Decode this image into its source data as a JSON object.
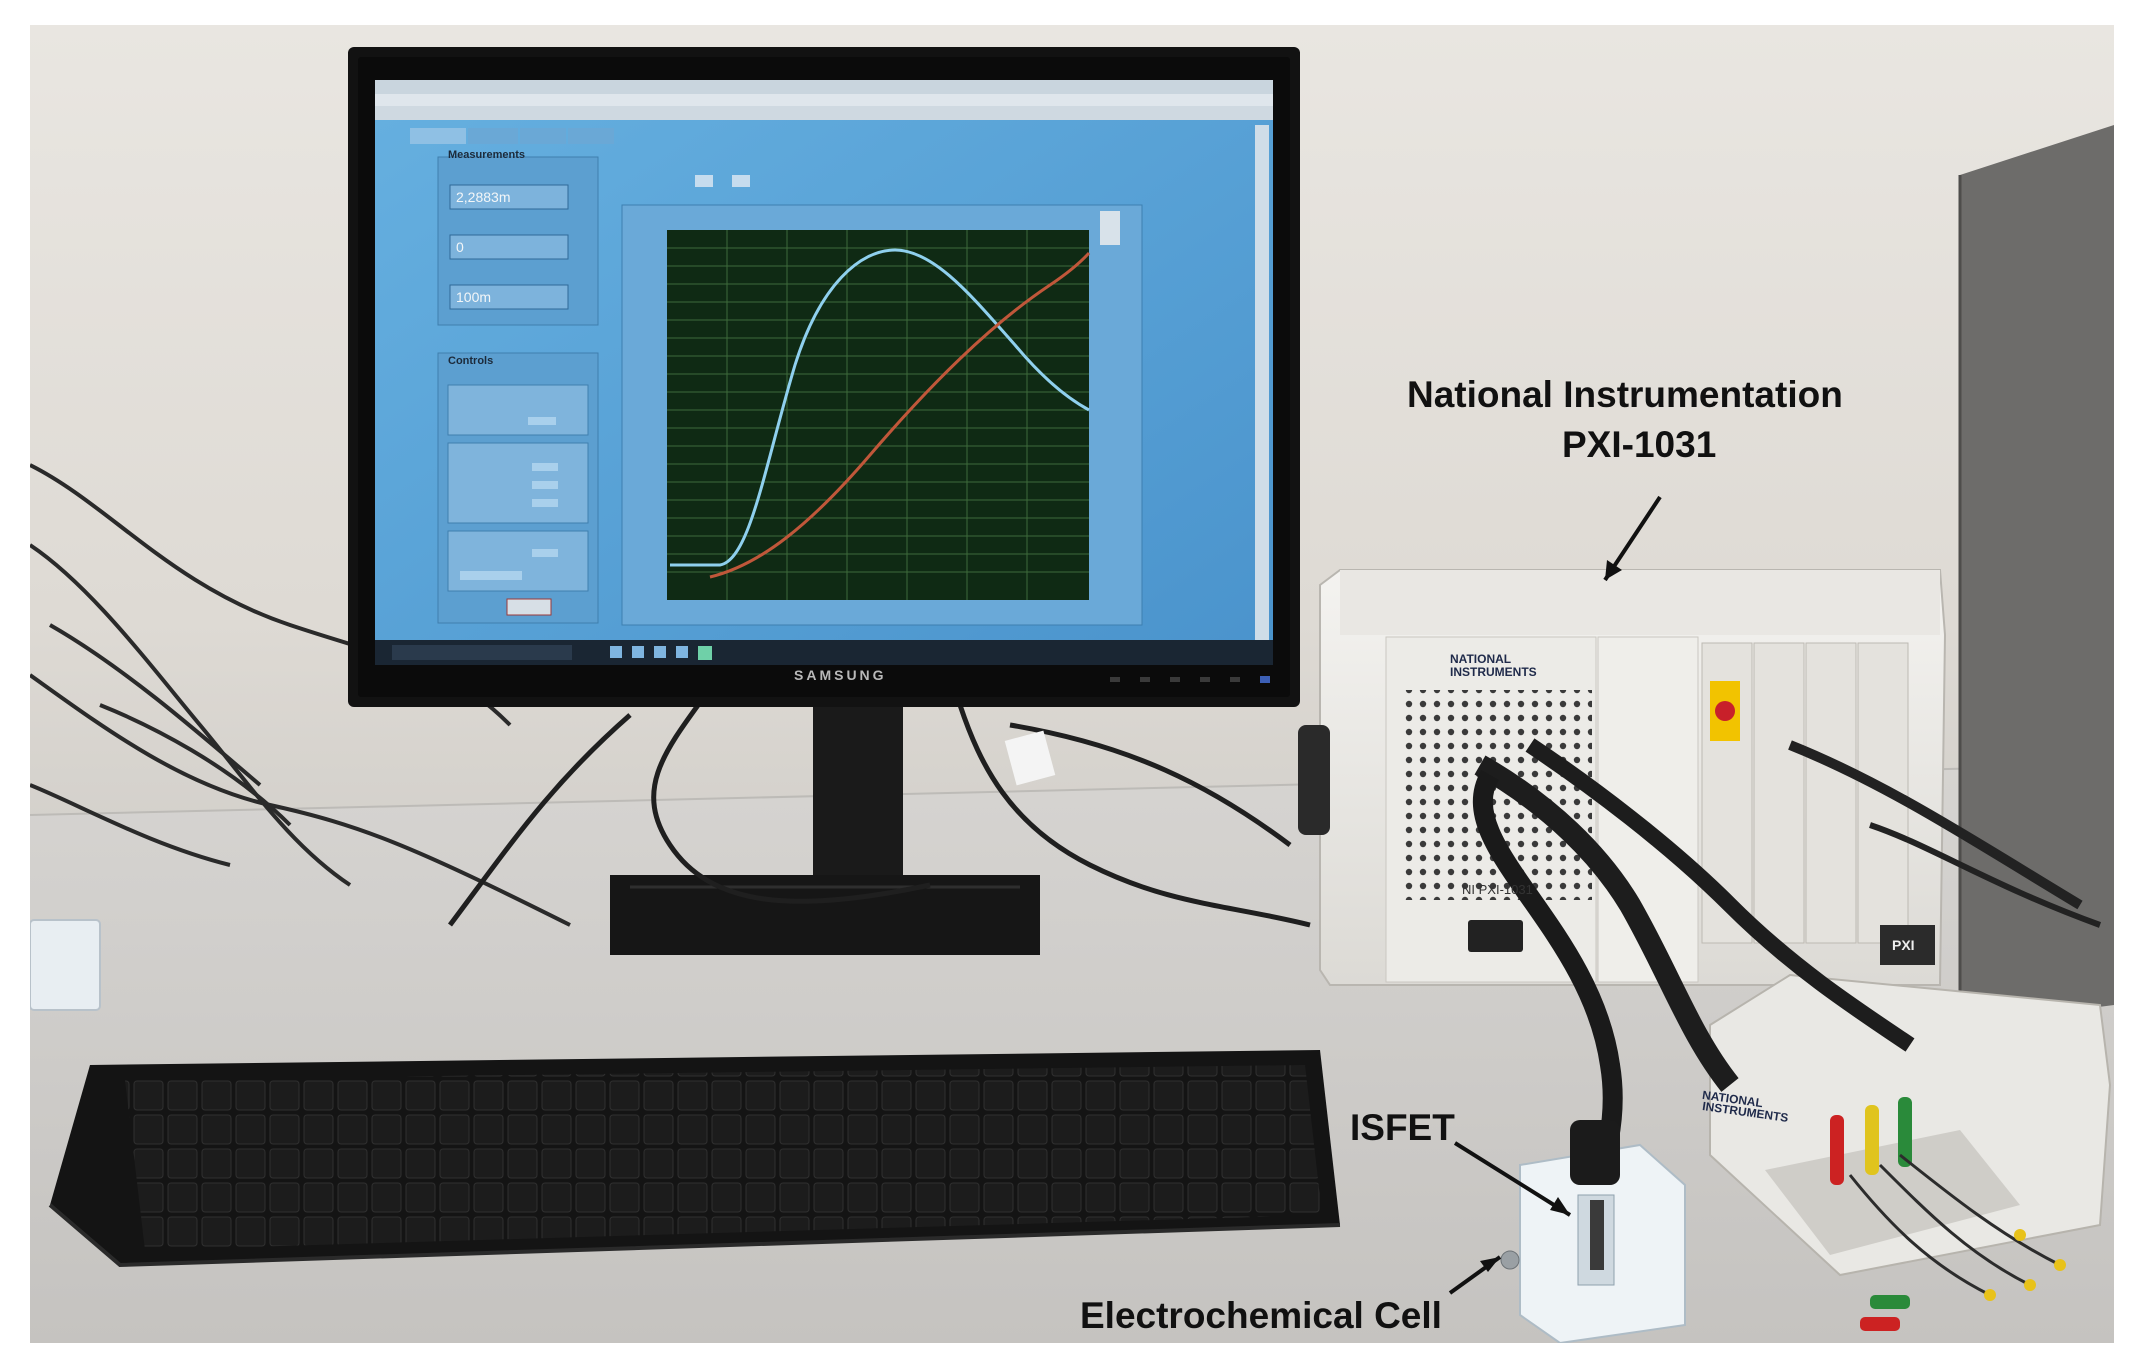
{
  "annotations": {
    "pxi_title_line1": "National Instrumentation",
    "pxi_title_line2": "PXI-1031",
    "isfet": "ISFET",
    "cell": "Electrochemical Cell"
  },
  "monitor": {
    "brand": "SAMSUNG",
    "screen": {
      "measurements_title": "Measurements",
      "drain_current_value": "2,2883m",
      "gate_source_value": "0",
      "step_value": "100m",
      "controls_title": "Controls"
    }
  },
  "chassis": {
    "brand_line1": "NATIONAL",
    "brand_line2": "INSTRUMENTS",
    "model": "NI PXI-1031",
    "pxi_badge": "PXI"
  },
  "breakout_box": {
    "brand_line1": "NATIONAL",
    "brand_line2": "INSTRUMENTS"
  },
  "colors": {
    "plot_background": "#0f2a14",
    "transfer_curve": "#8fd0ee",
    "second_curve": "#c0573a",
    "screen_blue": "#5aa3d6",
    "annotation_text": "#111111"
  }
}
